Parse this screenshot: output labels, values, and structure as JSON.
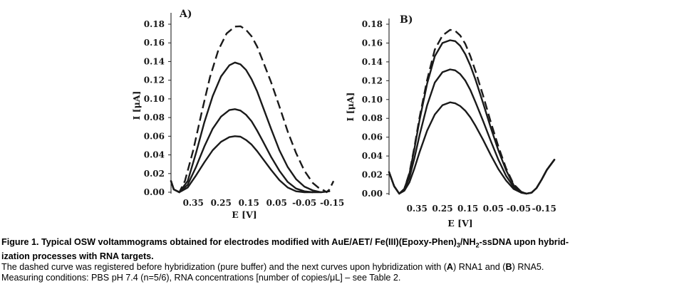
{
  "chart_data": [
    {
      "type": "line",
      "panel_label": "A)",
      "xlabel": "E [V]",
      "ylabel": "I [μA]",
      "x_reversed": true,
      "xlim": [
        0.43,
        -0.17
      ],
      "xticks": [
        "0.35",
        "0.25",
        "0.15",
        "0.05",
        "-0.05",
        "-0.15"
      ],
      "ylim": [
        0,
        0.18
      ],
      "yticks": [
        "0.00",
        "0.02",
        "0.04",
        "0.06",
        "0.08",
        "0.10",
        "0.12",
        "0.14",
        "0.16",
        "0.18"
      ],
      "series": [
        {
          "style": "dashed",
          "x": [
            0.43,
            0.42,
            0.4,
            0.38,
            0.35,
            0.32,
            0.29,
            0.26,
            0.23,
            0.2,
            0.18,
            0.16,
            0.14,
            0.12,
            0.1,
            0.07,
            0.04,
            0.01,
            -0.02,
            -0.05,
            -0.08,
            -0.1,
            -0.12,
            -0.13,
            -0.14,
            -0.155
          ],
          "y": [
            0.012,
            0.003,
            0.0,
            0.012,
            0.045,
            0.085,
            0.123,
            0.152,
            0.17,
            0.1775,
            0.1778,
            0.174,
            0.167,
            0.156,
            0.141,
            0.118,
            0.092,
            0.065,
            0.042,
            0.023,
            0.01,
            0.005,
            0.002,
            0.0,
            0.003,
            0.012
          ]
        },
        {
          "style": "solid",
          "x": [
            0.43,
            0.42,
            0.4,
            0.37,
            0.34,
            0.31,
            0.28,
            0.25,
            0.22,
            0.2,
            0.18,
            0.16,
            0.14,
            0.12,
            0.1,
            0.07,
            0.04,
            0.01,
            -0.02,
            -0.05,
            -0.08,
            -0.11,
            -0.14
          ],
          "y": [
            0.012,
            0.003,
            0.0,
            0.012,
            0.042,
            0.075,
            0.103,
            0.124,
            0.136,
            0.139,
            0.137,
            0.131,
            0.121,
            0.108,
            0.092,
            0.068,
            0.045,
            0.027,
            0.014,
            0.006,
            0.002,
            0.0,
            0.001
          ]
        },
        {
          "style": "solid",
          "x": [
            0.43,
            0.42,
            0.4,
            0.37,
            0.34,
            0.31,
            0.28,
            0.25,
            0.22,
            0.2,
            0.18,
            0.16,
            0.14,
            0.12,
            0.1,
            0.07,
            0.04,
            0.01,
            -0.02,
            -0.05,
            -0.08,
            -0.11
          ],
          "y": [
            0.012,
            0.003,
            0.0,
            0.008,
            0.027,
            0.049,
            0.068,
            0.081,
            0.088,
            0.089,
            0.0875,
            0.083,
            0.076,
            0.066,
            0.055,
            0.038,
            0.023,
            0.011,
            0.004,
            0.001,
            0.0,
            0.0
          ]
        },
        {
          "style": "solid",
          "x": [
            0.43,
            0.42,
            0.4,
            0.37,
            0.34,
            0.31,
            0.28,
            0.25,
            0.22,
            0.2,
            0.18,
            0.16,
            0.14,
            0.12,
            0.1,
            0.07,
            0.04,
            0.01,
            -0.02,
            -0.05,
            -0.08
          ],
          "y": [
            0.012,
            0.003,
            0.0,
            0.005,
            0.018,
            0.032,
            0.045,
            0.054,
            0.059,
            0.06,
            0.0595,
            0.056,
            0.051,
            0.044,
            0.036,
            0.024,
            0.013,
            0.005,
            0.001,
            0.0,
            0.0
          ]
        }
      ]
    },
    {
      "type": "line",
      "panel_label": "B)",
      "xlabel": "E [V]",
      "ylabel": "I [μA]",
      "x_reversed": true,
      "xlim": [
        0.46,
        -0.19
      ],
      "xticks": [
        "0.35",
        "0.25",
        "0.15",
        "0.05",
        "-0.05",
        "-0.15"
      ],
      "ylim": [
        0,
        0.18
      ],
      "yticks": [
        "0.00",
        "0.02",
        "0.04",
        "0.06",
        "0.08",
        "0.10",
        "0.12",
        "0.14",
        "0.16",
        "0.18"
      ],
      "series": [
        {
          "style": "dashed",
          "x": [
            0.46,
            0.44,
            0.42,
            0.4,
            0.38,
            0.36,
            0.34,
            0.31,
            0.28,
            0.25,
            0.22,
            0.2,
            0.18,
            0.16,
            0.14,
            0.12,
            0.09,
            0.06,
            0.03,
            0.0,
            -0.03,
            -0.06,
            -0.08,
            -0.1,
            -0.12,
            -0.14,
            -0.16,
            -0.19
          ],
          "y": [
            0.023,
            0.008,
            0.0,
            0.005,
            0.022,
            0.05,
            0.081,
            0.121,
            0.153,
            0.168,
            0.174,
            0.173,
            0.168,
            0.159,
            0.146,
            0.13,
            0.104,
            0.076,
            0.05,
            0.027,
            0.01,
            0.002,
            0.0,
            0.001,
            0.006,
            0.015,
            0.025,
            0.036
          ]
        },
        {
          "style": "solid",
          "x": [
            0.46,
            0.44,
            0.42,
            0.4,
            0.38,
            0.36,
            0.34,
            0.31,
            0.28,
            0.25,
            0.22,
            0.2,
            0.18,
            0.16,
            0.14,
            0.12,
            0.09,
            0.06,
            0.03,
            0.0,
            -0.03,
            -0.06,
            -0.08,
            -0.1,
            -0.12,
            -0.14,
            -0.16,
            -0.19
          ],
          "y": [
            0.023,
            0.008,
            0.0,
            0.005,
            0.021,
            0.048,
            0.078,
            0.117,
            0.146,
            0.16,
            0.163,
            0.162,
            0.157,
            0.148,
            0.136,
            0.121,
            0.096,
            0.07,
            0.046,
            0.025,
            0.009,
            0.002,
            0.0,
            0.001,
            0.006,
            0.015,
            0.025,
            0.036
          ]
        },
        {
          "style": "solid",
          "x": [
            0.46,
            0.44,
            0.42,
            0.4,
            0.38,
            0.36,
            0.34,
            0.31,
            0.28,
            0.25,
            0.22,
            0.2,
            0.18,
            0.16,
            0.14,
            0.12,
            0.09,
            0.06,
            0.03,
            0.0,
            -0.03,
            -0.06,
            -0.08,
            -0.1,
            -0.12,
            -0.14,
            -0.16,
            -0.19
          ],
          "y": [
            0.023,
            0.008,
            0.0,
            0.004,
            0.017,
            0.038,
            0.062,
            0.094,
            0.118,
            0.129,
            0.132,
            0.131,
            0.127,
            0.12,
            0.11,
            0.097,
            0.077,
            0.056,
            0.036,
            0.019,
            0.007,
            0.001,
            0.0,
            0.001,
            0.006,
            0.015,
            0.025,
            0.036
          ]
        },
        {
          "style": "solid",
          "x": [
            0.46,
            0.44,
            0.42,
            0.4,
            0.38,
            0.36,
            0.34,
            0.31,
            0.28,
            0.25,
            0.22,
            0.2,
            0.18,
            0.16,
            0.14,
            0.12,
            0.09,
            0.06,
            0.03,
            0.0,
            -0.03,
            -0.06,
            -0.08,
            -0.1,
            -0.12,
            -0.14,
            -0.16,
            -0.19
          ],
          "y": [
            0.023,
            0.008,
            0.0,
            0.003,
            0.012,
            0.027,
            0.044,
            0.067,
            0.084,
            0.094,
            0.097,
            0.096,
            0.093,
            0.088,
            0.081,
            0.072,
            0.057,
            0.041,
            0.026,
            0.014,
            0.005,
            0.001,
            0.0,
            0.001,
            0.006,
            0.015,
            0.025,
            0.036
          ]
        }
      ]
    }
  ],
  "caption": {
    "title_pre": "Figure 1. Typical OSW voltammograms obtained for electrodes modified with AuE/AET/ Fe(III)(Epoxy-Phen)",
    "title_sub1": "3",
    "title_mid": "/NH",
    "title_sub2": "2",
    "title_post": "-ssDNA upon hybrid-",
    "title_line2": "ization processes with RNA targets.",
    "body_pre": "The dashed curve was registered before hybridization (pure buffer) and the next curves upon hybridization with (",
    "body_bold_a": "A",
    "body_mid": ") RNA1 and (",
    "body_bold_b": "B",
    "body_post": ") RNA5.",
    "body_line3": "Measuring conditions: PBS pH 7.4 (n=5/6), RNA concentrations [number of copies/μL] – see Table 2."
  }
}
